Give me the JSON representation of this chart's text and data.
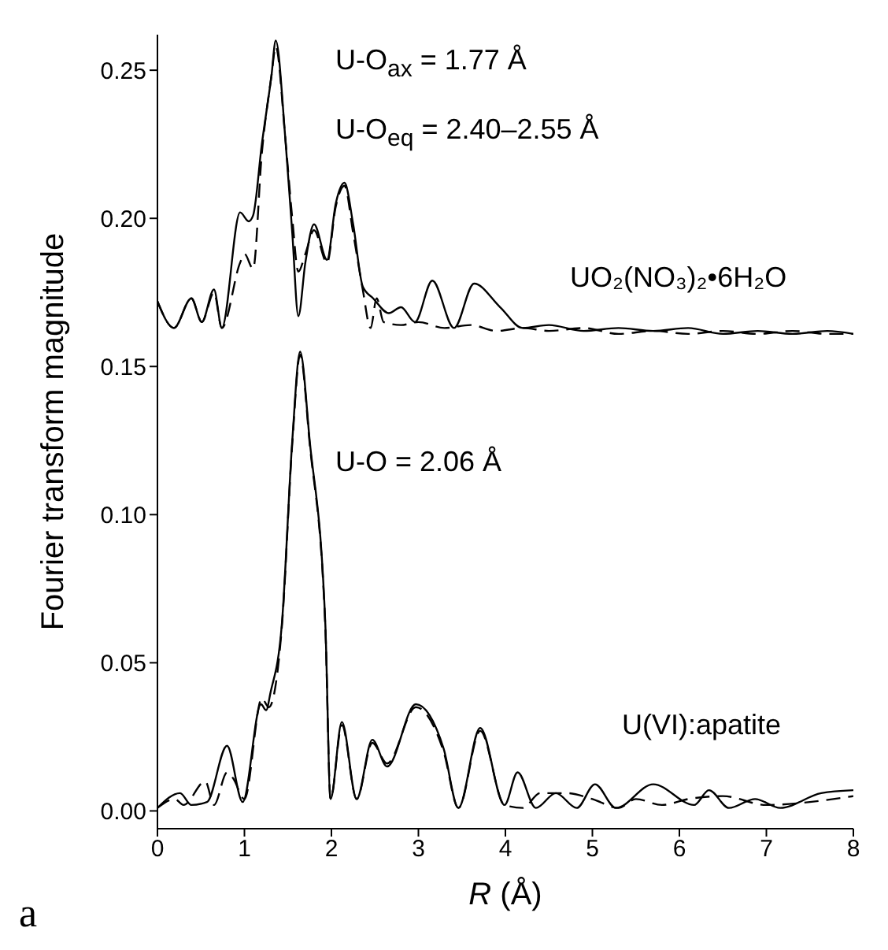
{
  "chart_data": {
    "type": "line",
    "xlabel": "R (Å)",
    "ylabel": "Fourier transform magnitude",
    "xlim": [
      0,
      8
    ],
    "ylim": [
      -0.006,
      0.262
    ],
    "xticks": [
      0,
      1,
      2,
      3,
      4,
      5,
      6,
      7,
      8
    ],
    "yticks": [
      {
        "value": 0,
        "label": "0.00"
      },
      0.05,
      {
        "value": 0.1,
        "label": "0.10"
      },
      0.15,
      {
        "value": 0.2,
        "label": "0.20"
      },
      0.25
    ],
    "grid": false,
    "legend": false,
    "marker": "none",
    "series": [
      {
        "color": "#000000",
        "line_style": "solid",
        "x": [
          0,
          0.19,
          0.39,
          0.51,
          0.65,
          0.74,
          0.95,
          1.05,
          1.1,
          1.2,
          1.31,
          1.36,
          1.47,
          1.55,
          1.62,
          1.7,
          1.8,
          1.95,
          2.05,
          2.15,
          2.25,
          2.36,
          2.48,
          2.66,
          2.8,
          2.96,
          3.16,
          3.41,
          3.64,
          3.94,
          4.2,
          4.5,
          4.9,
          5.3,
          5.7,
          6.1,
          6.5,
          6.9,
          7.3,
          7.7,
          8
        ],
        "values": [
          0.172,
          0.163,
          0.173,
          0.165,
          0.176,
          0.163,
          0.202,
          0.199,
          0.201,
          0.225,
          0.248,
          0.26,
          0.227,
          0.195,
          0.167,
          0.185,
          0.198,
          0.186,
          0.205,
          0.212,
          0.198,
          0.177,
          0.173,
          0.168,
          0.17,
          0.165,
          0.179,
          0.163,
          0.178,
          0.17,
          0.163,
          0.164,
          0.162,
          0.163,
          0.162,
          0.163,
          0.161,
          0.162,
          0.161,
          0.162,
          0.161
        ]
      },
      {
        "color": "#000000",
        "line_style": "dashed",
        "x": [
          0,
          0.19,
          0.39,
          0.51,
          0.65,
          0.74,
          0.95,
          1.0,
          1.1,
          1.2,
          1.31,
          1.36,
          1.47,
          1.55,
          1.62,
          1.7,
          1.8,
          1.95,
          2.05,
          2.15,
          2.25,
          2.36,
          2.45,
          2.52,
          2.6,
          2.8,
          3.0,
          3.3,
          3.6,
          3.9,
          4.2,
          4.5,
          4.9,
          5.3,
          5.7,
          6.1,
          6.5,
          6.9,
          7.3,
          7.7,
          8
        ],
        "values": [
          0.172,
          0.163,
          0.173,
          0.165,
          0.175,
          0.163,
          0.185,
          0.188,
          0.183,
          0.222,
          0.248,
          0.258,
          0.227,
          0.2,
          0.182,
          0.188,
          0.196,
          0.185,
          0.204,
          0.211,
          0.195,
          0.176,
          0.163,
          0.173,
          0.165,
          0.164,
          0.165,
          0.163,
          0.164,
          0.162,
          0.163,
          0.162,
          0.163,
          0.161,
          0.162,
          0.161,
          0.162,
          0.161,
          0.162,
          0.161,
          0.161
        ]
      },
      {
        "color": "#000000",
        "line_style": "solid",
        "x": [
          0,
          0.26,
          0.39,
          0.57,
          0.8,
          0.98,
          1.19,
          1.25,
          1.3,
          1.43,
          1.55,
          1.64,
          1.75,
          1.93,
          1.99,
          2.12,
          2.29,
          2.47,
          2.64,
          2.97,
          3.29,
          3.46,
          3.71,
          3.99,
          4.14,
          4.35,
          4.58,
          4.82,
          5.03,
          5.27,
          5.7,
          6.17,
          6.34,
          6.57,
          6.87,
          7.16,
          7.63,
          8
        ],
        "values": [
          0.001,
          0.006,
          0.002,
          0.003,
          0.022,
          0.003,
          0.036,
          0.034,
          0.04,
          0.063,
          0.125,
          0.155,
          0.125,
          0.063,
          0.004,
          0.03,
          0.004,
          0.024,
          0.015,
          0.036,
          0.021,
          0.001,
          0.028,
          0.002,
          0.013,
          0.001,
          0.006,
          0.001,
          0.009,
          0.001,
          0.009,
          0.002,
          0.007,
          0.001,
          0.004,
          0.001,
          0.006,
          0.007
        ]
      },
      {
        "color": "#000000",
        "line_style": "dashed",
        "x": [
          0,
          0.2,
          0.3,
          0.55,
          0.65,
          0.8,
          0.87,
          1.0,
          1.2,
          1.28,
          1.43,
          1.55,
          1.64,
          1.75,
          1.93,
          1.99,
          2.12,
          2.29,
          2.47,
          2.64,
          2.97,
          3.29,
          3.46,
          3.71,
          3.99,
          4.2,
          4.4,
          4.7,
          5.0,
          5.3,
          5.5,
          5.8,
          6.1,
          6.5,
          7.0,
          7.5,
          8
        ],
        "values": [
          0.001,
          0.004,
          0.002,
          0.01,
          0.002,
          0.013,
          0.011,
          0.004,
          0.038,
          0.035,
          0.062,
          0.124,
          0.154,
          0.124,
          0.062,
          0.004,
          0.029,
          0.004,
          0.023,
          0.016,
          0.035,
          0.02,
          0.001,
          0.027,
          0.002,
          0.001,
          0.006,
          0.006,
          0.004,
          0.001,
          0.004,
          0.002,
          0.004,
          0.005,
          0.002,
          0.003,
          0.005
        ]
      }
    ],
    "annotations": [
      "U-O$_{ax}$ = 1.77 Å",
      "U-O$_{eq}$ = 2.40–2.55 Å",
      "UO₂(NO₃)₂•6H₂O",
      "U-O = 2.06 Å",
      "U(VI):apatite",
      "a"
    ]
  }
}
